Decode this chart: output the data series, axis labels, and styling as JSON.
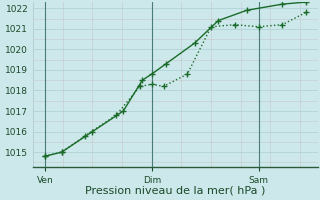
{
  "title": "Pression niveau de la mer( hPa )",
  "bg_color": "#cce8ea",
  "plot_bg_color": "#cce8ea",
  "line_color": "#1a6b2a",
  "ylim": [
    1014.3,
    1022.3
  ],
  "yticks": [
    1015,
    1016,
    1017,
    1018,
    1019,
    1020,
    1021,
    1022
  ],
  "xlim": [
    0,
    12
  ],
  "xtick_positions": [
    0.5,
    5.0,
    9.5
  ],
  "xtick_labels": [
    "Ven",
    "Dim",
    "Sam"
  ],
  "vline_positions": [
    0.5,
    5.0,
    9.5
  ],
  "series1_x": [
    0.5,
    1.2,
    2.2,
    3.5,
    4.5,
    5.0,
    5.5,
    6.5,
    7.5,
    8.5,
    9.5,
    10.5,
    11.5
  ],
  "series1_y": [
    1014.8,
    1015.0,
    1015.8,
    1016.8,
    1018.2,
    1018.3,
    1018.2,
    1018.8,
    1021.1,
    1021.2,
    1021.1,
    1021.2,
    1021.8
  ],
  "series2_x": [
    0.5,
    1.2,
    2.5,
    3.8,
    4.6,
    5.0,
    5.6,
    6.8,
    7.8,
    9.0,
    10.5,
    11.5
  ],
  "series2_y": [
    1014.8,
    1015.0,
    1016.0,
    1017.0,
    1018.5,
    1018.8,
    1019.3,
    1020.3,
    1021.4,
    1021.9,
    1022.2,
    1022.3
  ],
  "marker_size": 4,
  "line_width": 1.0,
  "grid_major_color": "#aacfd4",
  "grid_minor_color": "#c8b0b8",
  "ylabel_fontsize": 6.5,
  "xlabel_fontsize": 8
}
